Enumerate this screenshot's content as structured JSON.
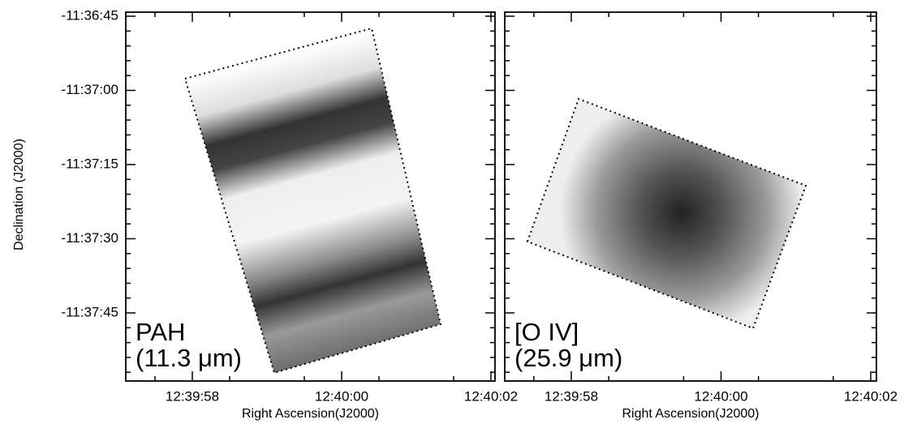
{
  "y_label": "Declination (J2000)",
  "yticks": [
    "-11:36:45",
    "-11:37:00",
    "-11:37:15",
    "-11:37:30",
    "-11:37:45"
  ],
  "panels": [
    {
      "name": "PAH",
      "wavelength": "(11.3 μm)",
      "x_label": "Right Ascension(J2000)",
      "xticks": [
        "12:39:58",
        "12:40:00",
        "12:40:02"
      ]
    },
    {
      "name": "[O IV]",
      "wavelength": "(25.9 μm)",
      "x_label": "Right Ascension(J2000)",
      "xticks": [
        "12:39:58",
        "12:40:00",
        "12:40:02"
      ]
    }
  ]
}
